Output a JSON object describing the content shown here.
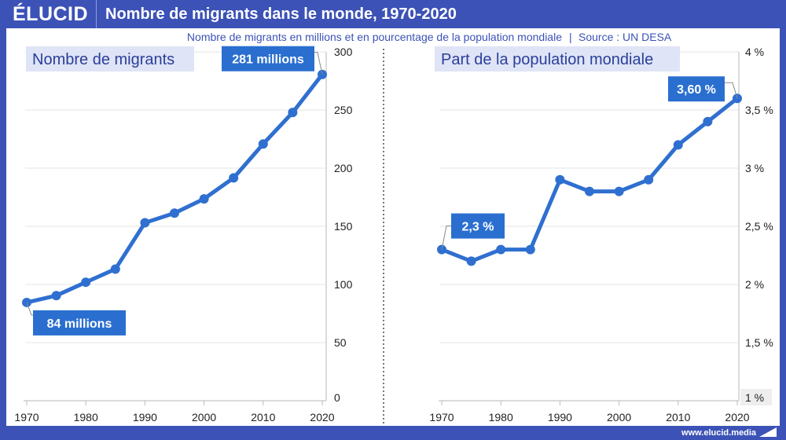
{
  "header": {
    "logo": "ÉLUCID",
    "title": "Nombre de migrants dans le monde, 1970-2020"
  },
  "subtitle": "Nombre de migrants en millions et en pourcentage de la population mondiale",
  "source": "Source : UN DESA",
  "footer": {
    "url": "www.elucid.media"
  },
  "colors": {
    "frame": "#3c52b6",
    "line": "#2f6fd0",
    "callout": "#2a6fcf",
    "panel_label_bg": "#dfe4f6"
  },
  "chart_data": [
    {
      "type": "line",
      "title": "Nombre de migrants",
      "x": [
        1970,
        1975,
        1980,
        1985,
        1990,
        1995,
        2000,
        2005,
        2010,
        2015,
        2020
      ],
      "values": [
        84.5,
        90.4,
        101.9,
        113.2,
        153.0,
        161.3,
        173.6,
        191.6,
        220.8,
        247.9,
        280.6
      ],
      "xticks": [
        "1970",
        "1980",
        "1990",
        "2000",
        "2010",
        "2020"
      ],
      "yticks": [
        "0",
        "50",
        "100",
        "150",
        "200",
        "250",
        "300"
      ],
      "ylim": [
        0,
        300
      ],
      "yaxis_side": "right",
      "grid": true,
      "annotations": [
        {
          "x": 1970,
          "text": "84 millions"
        },
        {
          "x": 2020,
          "text": "281 millions"
        }
      ]
    },
    {
      "type": "line",
      "title": "Part de la population mondiale",
      "x": [
        1970,
        1975,
        1980,
        1985,
        1990,
        1995,
        2000,
        2005,
        2010,
        2015,
        2020
      ],
      "values": [
        2.3,
        2.2,
        2.3,
        2.3,
        2.9,
        2.8,
        2.8,
        2.9,
        3.2,
        3.4,
        3.6
      ],
      "xticks": [
        "1970",
        "1980",
        "1990",
        "2000",
        "2010",
        "2020"
      ],
      "yticks": [
        "1 %",
        "1,5 %",
        "2 %",
        "2,5 %",
        "3 %",
        "3,5 %",
        "4 %"
      ],
      "ylim": [
        1,
        4
      ],
      "yaxis_side": "right",
      "grid": true,
      "annotations": [
        {
          "x": 1970,
          "text": "2,3 %"
        },
        {
          "x": 2020,
          "text": "3,60 %"
        }
      ]
    }
  ]
}
